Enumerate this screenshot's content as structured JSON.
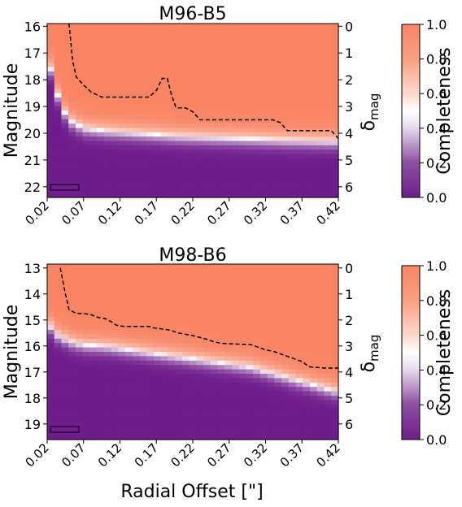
{
  "figure": {
    "xlabel": "Radial Offset [\"]",
    "ylabel": "Magnitude"
  },
  "colorbar": {
    "label": "Completeness",
    "range": [
      0,
      1
    ],
    "ticks": [
      "0.0",
      "0.2",
      "0.4",
      "0.6",
      "0.8",
      "1.0"
    ],
    "colors": {
      "low": "#6f1d8c",
      "mid": "#ffffff",
      "high": "#f98464"
    }
  },
  "chart_data": [
    {
      "type": "heatmap",
      "title": "M96-B5",
      "xlabel": "Radial Offset [\"]",
      "ylabel": "Magnitude",
      "ylabel_right": "δmag",
      "x_range": [
        0.02,
        0.42
      ],
      "x_ticks": [
        "0.02",
        "0.07",
        "0.12",
        "0.17",
        "0.22",
        "0.27",
        "0.32",
        "0.37",
        "0.42"
      ],
      "y_range": [
        15.9,
        22.4
      ],
      "y_ticks": [
        "16",
        "17",
        "18",
        "19",
        "20",
        "21",
        "22"
      ],
      "y2_ticks": [
        "0",
        "1",
        "2",
        "3",
        "4",
        "5",
        "6"
      ],
      "delta_mag_offset": 16.0,
      "completeness_curve": {
        "x": [
          0.02,
          0.03,
          0.04,
          0.05,
          0.07,
          0.1,
          0.15,
          0.2,
          0.25,
          0.3,
          0.35,
          0.42
        ],
        "mag50": [
          17.0,
          18.2,
          19.0,
          19.5,
          19.8,
          19.9,
          20.0,
          20.1,
          20.15,
          20.2,
          20.25,
          20.3
        ]
      },
      "dashed_contour": {
        "x": [
          0.05,
          0.055,
          0.06,
          0.07,
          0.08,
          0.095,
          0.16,
          0.17,
          0.178,
          0.185,
          0.19,
          0.197,
          0.21,
          0.22,
          0.23,
          0.27,
          0.33,
          0.34,
          0.35,
          0.37,
          0.41,
          0.42
        ],
        "mag": [
          15.9,
          17.3,
          17.9,
          18.2,
          18.45,
          18.65,
          18.65,
          18.4,
          17.95,
          17.95,
          18.5,
          19.05,
          19.05,
          19.2,
          19.5,
          19.5,
          19.5,
          19.6,
          19.9,
          19.9,
          19.9,
          20.2
        ]
      }
    },
    {
      "type": "heatmap",
      "title": "M98-B6",
      "xlabel": "Radial Offset [\"]",
      "ylabel": "Magnitude",
      "ylabel_right": "δmag",
      "x_range": [
        0.02,
        0.42
      ],
      "x_ticks": [
        "0.02",
        "0.07",
        "0.12",
        "0.17",
        "0.22",
        "0.27",
        "0.32",
        "0.37",
        "0.42"
      ],
      "y_range": [
        12.85,
        19.6
      ],
      "y_ticks": [
        "13",
        "14",
        "15",
        "16",
        "17",
        "18",
        "19"
      ],
      "y2_ticks": [
        "0",
        "1",
        "2",
        "3",
        "4",
        "5",
        "6"
      ],
      "delta_mag_offset": 13.0,
      "completeness_curve": {
        "x": [
          0.02,
          0.03,
          0.05,
          0.07,
          0.1,
          0.15,
          0.2,
          0.25,
          0.3,
          0.35,
          0.4,
          0.42
        ],
        "mag50": [
          15.0,
          15.5,
          15.8,
          15.95,
          16.0,
          16.2,
          16.4,
          16.6,
          16.8,
          17.2,
          17.6,
          17.75
        ]
      },
      "dashed_contour": {
        "x": [
          0.038,
          0.045,
          0.05,
          0.06,
          0.07,
          0.08,
          0.09,
          0.1,
          0.11,
          0.115,
          0.125,
          0.15,
          0.16,
          0.165,
          0.18,
          0.19,
          0.2,
          0.22,
          0.24,
          0.25,
          0.26,
          0.3,
          0.31,
          0.32,
          0.33,
          0.34,
          0.36,
          0.37,
          0.38,
          0.4,
          0.42
        ],
        "mag": [
          13.0,
          14.0,
          14.6,
          14.75,
          14.75,
          14.8,
          14.9,
          14.95,
          15.1,
          15.2,
          15.25,
          15.25,
          15.25,
          15.3,
          15.35,
          15.4,
          15.5,
          15.6,
          15.75,
          15.85,
          15.9,
          15.95,
          16.05,
          16.15,
          16.2,
          16.3,
          16.5,
          16.6,
          16.8,
          16.85,
          16.85
        ]
      }
    }
  ]
}
